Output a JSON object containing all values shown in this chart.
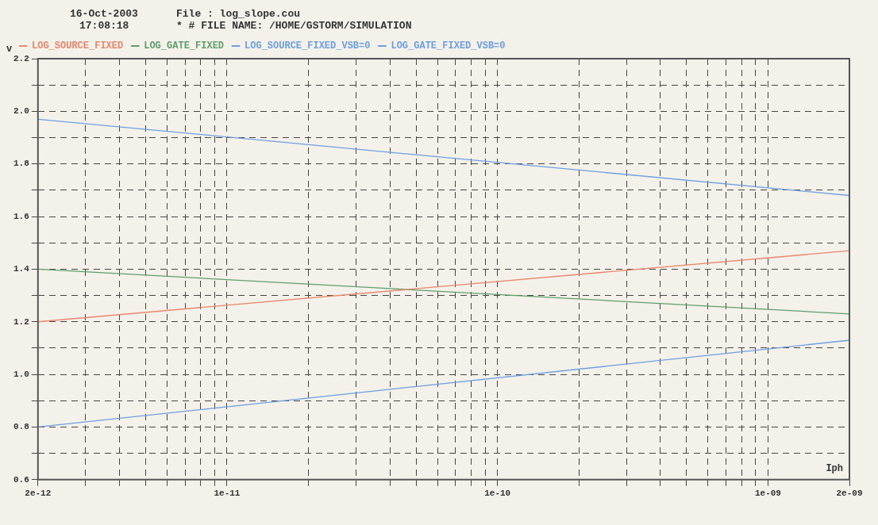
{
  "chart_data": {
    "type": "line",
    "xlabel": "Iph",
    "ylabel": "v",
    "annotations": [
      "16-Oct-2003",
      "17:08:18",
      "File : log_slope.cou",
      "* # FILE NAME: /HOME/GSTORM/SIMULATION"
    ],
    "log": "x",
    "grid": true,
    "legend": "top left",
    "marker": "none",
    "line_style": "solid",
    "xlim": [
      2e-12,
      2e-09
    ],
    "ylim": [
      0.6,
      2.2
    ],
    "xticks": [
      {
        "value": 2e-12,
        "label": "2e-12"
      },
      {
        "value": 3e-12,
        "label": null
      },
      {
        "value": 4e-12,
        "label": null
      },
      {
        "value": 5e-12,
        "label": null
      },
      {
        "value": 6e-12,
        "label": null
      },
      {
        "value": 7e-12,
        "label": null
      },
      {
        "value": 8e-12,
        "label": null
      },
      {
        "value": 9e-12,
        "label": null
      },
      {
        "value": 1e-11,
        "label": "1e-11"
      },
      {
        "value": 2e-11,
        "label": null
      },
      {
        "value": 3e-11,
        "label": null
      },
      {
        "value": 4e-11,
        "label": null
      },
      {
        "value": 5e-11,
        "label": null
      },
      {
        "value": 6e-11,
        "label": null
      },
      {
        "value": 7e-11,
        "label": null
      },
      {
        "value": 8e-11,
        "label": null
      },
      {
        "value": 9e-11,
        "label": null
      },
      {
        "value": 1e-10,
        "label": "1e-10"
      },
      {
        "value": 2e-10,
        "label": null
      },
      {
        "value": 3e-10,
        "label": null
      },
      {
        "value": 4e-10,
        "label": null
      },
      {
        "value": 5e-10,
        "label": null
      },
      {
        "value": 6e-10,
        "label": null
      },
      {
        "value": 7e-10,
        "label": null
      },
      {
        "value": 8e-10,
        "label": null
      },
      {
        "value": 9e-10,
        "label": null
      },
      {
        "value": 1e-09,
        "label": "1e-09"
      },
      {
        "value": 2e-09,
        "label": "2e-09"
      }
    ],
    "yticks": [
      {
        "value": 0.6,
        "label": "0.6"
      },
      {
        "value": 0.7,
        "label": null
      },
      {
        "value": 0.8,
        "label": "0.8"
      },
      {
        "value": 0.9,
        "label": null
      },
      {
        "value": 1.0,
        "label": "1.0"
      },
      {
        "value": 1.1,
        "label": null
      },
      {
        "value": 1.2,
        "label": "1.2"
      },
      {
        "value": 1.3,
        "label": null
      },
      {
        "value": 1.4,
        "label": "1.4"
      },
      {
        "value": 1.5,
        "label": null
      },
      {
        "value": 1.6,
        "label": "1.6"
      },
      {
        "value": 1.7,
        "label": null
      },
      {
        "value": 1.8,
        "label": "1.8"
      },
      {
        "value": 1.9,
        "label": null
      },
      {
        "value": 2.0,
        "label": "2.0"
      },
      {
        "value": 2.1,
        "label": null
      },
      {
        "value": 2.2,
        "label": "2.2"
      }
    ],
    "x": [
      2e-12,
      2e-09
    ],
    "series": [
      {
        "name": "LOG_SOURCE_FIXED",
        "color": "#e8876e",
        "values": [
          1.2,
          1.47
        ]
      },
      {
        "name": "LOG_GATE_FIXED",
        "color": "#5e9e6c",
        "values": [
          1.4,
          1.23
        ]
      },
      {
        "name": "LOG_SOURCE_FIXED_VSB=0",
        "color": "#6d9fe0",
        "values": [
          0.8,
          1.13
        ]
      },
      {
        "name": "LOG_GATE_FIXED_VSB=0",
        "color": "#6d9fe0",
        "values": [
          1.97,
          1.68
        ]
      }
    ]
  }
}
